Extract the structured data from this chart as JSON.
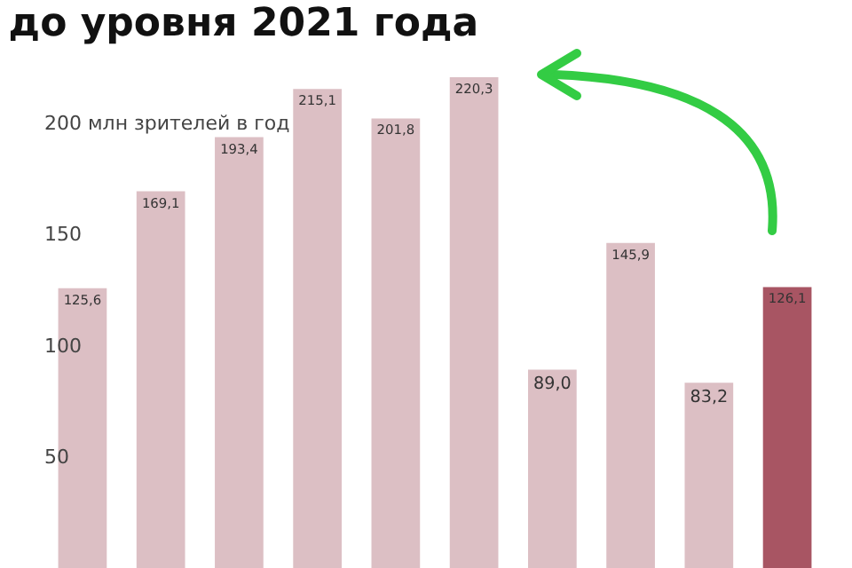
{
  "chart_data": {
    "type": "bar",
    "title": "до уровня 2021 года",
    "categories": [
      null,
      null,
      null,
      null,
      null,
      null,
      null,
      null,
      null,
      null
    ],
    "values": [
      125.6,
      169.1,
      193.4,
      215.1,
      201.8,
      220.3,
      89.0,
      145.9,
      83.2,
      126.1
    ],
    "colors": [
      "#dcbfc4",
      "#dcbfc4",
      "#dcbfc4",
      "#dcbfc4",
      "#dcbfc4",
      "#dcbfc4",
      "#dcbfc4",
      "#dcbfc4",
      "#dcbfc4",
      "#a85563"
    ],
    "value_labels": [
      "125,6",
      "169,1",
      "193,4",
      "215,1",
      "201,8",
      "220,3",
      "89,0",
      "145,9",
      "83,2",
      "126,1"
    ],
    "ylim": [
      0,
      255
    ],
    "yticks": [
      50,
      100,
      150,
      {
        "value": 200,
        "label": "200 млн зрителей в год"
      }
    ],
    "tick_labels": "y",
    "grid": false
  }
}
